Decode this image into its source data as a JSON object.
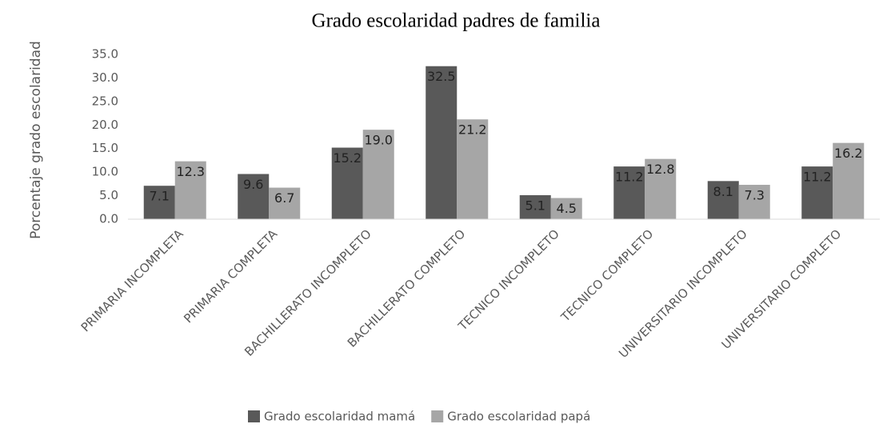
{
  "chart_data": {
    "type": "bar",
    "title": "Grado escolaridad padres de familia",
    "y_label": "Porcentaje grado escolaridad",
    "categories": [
      "PRIMARIA INCOMPLETA",
      "PRIMARIA COMPLETA",
      "BACHILLERATO INCOMPLETO",
      "BACHILLERATO COMPLETO",
      "TECNICO INCOMPLETO",
      "TECNICO COMPLETO",
      "UNIVERSITARIO INCOMPLETO",
      "UNIVERSITARIO COMPLETO"
    ],
    "series": [
      {
        "name": "Grado escolaridad mamá",
        "color": "#595959",
        "values": [
          7.1,
          9.6,
          15.2,
          32.5,
          5.1,
          11.2,
          8.1,
          11.2
        ],
        "value_labels": [
          "7.1",
          "9.6",
          "15.2",
          "32.5",
          "5.1",
          "11.2",
          "8.1",
          "11.2"
        ]
      },
      {
        "name": "Grado escolaridad papá",
        "color": "#a6a6a6",
        "values": [
          12.3,
          6.7,
          19.0,
          21.2,
          4.5,
          12.8,
          7.3,
          16.2
        ],
        "value_labels": [
          "12.3",
          "6.7",
          "19.0",
          "21.2",
          "4.5",
          "12.8",
          "7.3",
          "16.2"
        ]
      }
    ],
    "ylim": [
      0,
      35
    ],
    "yticks": [
      {
        "value": 0,
        "label": "0.0"
      },
      {
        "value": 5,
        "label": "5.0"
      },
      {
        "value": 10,
        "label": "10.0"
      },
      {
        "value": 15,
        "label": "15.0"
      },
      {
        "value": 20,
        "label": "20.0"
      },
      {
        "value": 25,
        "label": "25.0"
      },
      {
        "value": 30,
        "label": "30.0"
      },
      {
        "value": 35,
        "label": "35.0"
      }
    ],
    "legend": "bottom"
  }
}
